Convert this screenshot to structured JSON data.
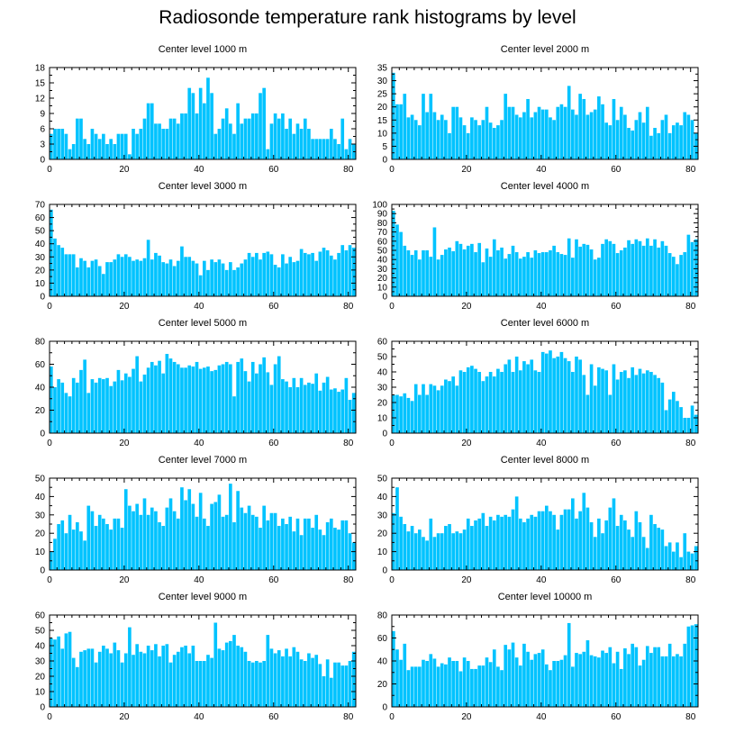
{
  "title": "Radiosonde temperature rank histograms by level",
  "colors": {
    "bar": "#00c3ff",
    "axis": "#000000",
    "background": "#ffffff"
  },
  "chart_data": [
    {
      "type": "bar",
      "title": "Center level 1000 m",
      "xlabel": "",
      "ylabel": "",
      "xlim": [
        0,
        82
      ],
      "ylim": [
        0,
        18
      ],
      "xticks": [
        0,
        20,
        40,
        60,
        80
      ],
      "yticks": [
        0,
        3,
        6,
        9,
        12,
        15,
        18
      ],
      "values": [
        5,
        6,
        6,
        6,
        5,
        2,
        3,
        8,
        8,
        4,
        3,
        6,
        5,
        4,
        5,
        3,
        4,
        3,
        5,
        5,
        5,
        1,
        6,
        5,
        6,
        8,
        11,
        11,
        7,
        7,
        6,
        6,
        8,
        8,
        7,
        9,
        9,
        14,
        13,
        9,
        14,
        11,
        16,
        13,
        5,
        6,
        8,
        10,
        7,
        5,
        11,
        7,
        8,
        8,
        9,
        9,
        13,
        14,
        2,
        7,
        9,
        8,
        9,
        6,
        8,
        5,
        7,
        6,
        8,
        6,
        4,
        4,
        4,
        4,
        4,
        6,
        4,
        3,
        8,
        2,
        4,
        3
      ]
    },
    {
      "type": "bar",
      "title": "Center level 2000 m",
      "xlabel": "",
      "ylabel": "",
      "xlim": [
        0,
        82
      ],
      "ylim": [
        0,
        35
      ],
      "xticks": [
        0,
        20,
        40,
        60,
        80
      ],
      "yticks": [
        0,
        5,
        10,
        15,
        20,
        25,
        30,
        35
      ],
      "values": [
        33,
        21,
        21,
        25,
        16,
        17,
        15,
        13,
        25,
        18,
        25,
        18,
        15,
        17,
        15,
        10,
        20,
        20,
        16,
        13,
        10,
        16,
        15,
        13,
        15,
        20,
        14,
        12,
        13,
        15,
        25,
        20,
        20,
        17,
        16,
        18,
        23,
        16,
        18,
        20,
        19,
        19,
        16,
        15,
        20,
        21,
        20,
        28,
        19,
        17,
        25,
        23,
        17,
        18,
        19,
        24,
        21,
        14,
        13,
        23,
        15,
        20,
        17,
        12,
        11,
        15,
        18,
        14,
        20,
        9,
        12,
        10,
        15,
        17,
        10,
        13,
        14,
        13,
        18,
        17,
        15,
        10
      ]
    },
    {
      "type": "bar",
      "title": "Center level 3000 m",
      "xlabel": "",
      "ylabel": "",
      "xlim": [
        0,
        82
      ],
      "ylim": [
        0,
        70
      ],
      "xticks": [
        0,
        20,
        40,
        60,
        80
      ],
      "yticks": [
        0,
        10,
        20,
        30,
        40,
        50,
        60,
        70
      ],
      "values": [
        66,
        44,
        39,
        37,
        32,
        32,
        32,
        22,
        29,
        27,
        22,
        27,
        28,
        23,
        17,
        26,
        26,
        28,
        32,
        30,
        32,
        30,
        27,
        28,
        27,
        29,
        43,
        28,
        33,
        31,
        26,
        25,
        28,
        23,
        27,
        38,
        30,
        30,
        27,
        25,
        16,
        27,
        20,
        28,
        26,
        28,
        25,
        20,
        26,
        20,
        22,
        25,
        28,
        33,
        30,
        33,
        28,
        33,
        34,
        32,
        24,
        22,
        32,
        25,
        30,
        26,
        27,
        36,
        33,
        32,
        33,
        27,
        34,
        37,
        35,
        31,
        28,
        33,
        39,
        35,
        39,
        37
      ]
    },
    {
      "type": "bar",
      "title": "Center level 4000 m",
      "xlabel": "",
      "ylabel": "",
      "xlim": [
        0,
        82
      ],
      "ylim": [
        0,
        100
      ],
      "xticks": [
        0,
        20,
        40,
        60,
        80
      ],
      "yticks": [
        0,
        10,
        20,
        30,
        40,
        50,
        60,
        70,
        80,
        90,
        100
      ],
      "values": [
        93,
        78,
        70,
        55,
        50,
        45,
        50,
        40,
        50,
        50,
        43,
        75,
        40,
        45,
        51,
        53,
        49,
        60,
        57,
        51,
        55,
        57,
        48,
        58,
        37,
        52,
        43,
        62,
        50,
        53,
        41,
        46,
        55,
        48,
        41,
        43,
        48,
        42,
        50,
        47,
        48,
        48,
        50,
        55,
        48,
        46,
        45,
        63,
        42,
        62,
        54,
        57,
        56,
        51,
        40,
        42,
        57,
        62,
        60,
        57,
        47,
        50,
        53,
        61,
        57,
        62,
        60,
        55,
        63,
        55,
        62,
        53,
        60,
        55,
        47,
        43,
        35,
        45,
        48,
        67,
        59,
        62
      ]
    },
    {
      "type": "bar",
      "title": "Center level 5000 m",
      "xlabel": "",
      "ylabel": "",
      "xlim": [
        0,
        82
      ],
      "ylim": [
        0,
        80
      ],
      "xticks": [
        0,
        20,
        40,
        60,
        80
      ],
      "yticks": [
        0,
        20,
        40,
        60,
        80
      ],
      "values": [
        58,
        40,
        47,
        44,
        35,
        32,
        48,
        44,
        55,
        64,
        35,
        47,
        44,
        48,
        47,
        48,
        41,
        45,
        55,
        46,
        52,
        49,
        56,
        67,
        45,
        51,
        57,
        62,
        59,
        63,
        52,
        69,
        65,
        62,
        60,
        57,
        57,
        59,
        58,
        62,
        56,
        57,
        58,
        54,
        55,
        59,
        60,
        62,
        60,
        32,
        62,
        65,
        54,
        45,
        62,
        52,
        60,
        66,
        53,
        42,
        60,
        67,
        47,
        45,
        40,
        48,
        40,
        48,
        42,
        44,
        43,
        52,
        37,
        44,
        49,
        38,
        39,
        36,
        38,
        48,
        29,
        35
      ]
    },
    {
      "type": "bar",
      "title": "Center level 6000 m",
      "xlabel": "",
      "ylabel": "",
      "xlim": [
        0,
        82
      ],
      "ylim": [
        0,
        60
      ],
      "xticks": [
        0,
        20,
        40,
        60,
        80
      ],
      "yticks": [
        0,
        10,
        20,
        30,
        40,
        50,
        60
      ],
      "values": [
        25,
        25,
        24,
        26,
        23,
        21,
        32,
        25,
        32,
        25,
        32,
        31,
        28,
        31,
        35,
        34,
        37,
        31,
        41,
        40,
        43,
        44,
        42,
        40,
        34,
        37,
        40,
        37,
        42,
        40,
        45,
        48,
        40,
        50,
        41,
        47,
        45,
        48,
        41,
        40,
        53,
        52,
        54,
        49,
        50,
        53,
        49,
        47,
        40,
        50,
        48,
        38,
        25,
        45,
        31,
        43,
        42,
        41,
        25,
        45,
        35,
        40,
        41,
        36,
        43,
        38,
        42,
        39,
        41,
        40,
        38,
        36,
        33,
        15,
        22,
        27,
        21,
        17,
        10,
        10,
        18,
        12
      ]
    },
    {
      "type": "bar",
      "title": "Center level 7000 m",
      "xlabel": "",
      "ylabel": "",
      "xlim": [
        0,
        82
      ],
      "ylim": [
        0,
        50
      ],
      "xticks": [
        0,
        20,
        40,
        60,
        80
      ],
      "yticks": [
        0,
        10,
        20,
        30,
        40,
        50
      ],
      "values": [
        10,
        17,
        25,
        27,
        20,
        30,
        22,
        26,
        21,
        16,
        35,
        32,
        24,
        30,
        28,
        25,
        22,
        28,
        28,
        23,
        44,
        35,
        32,
        36,
        30,
        39,
        30,
        34,
        32,
        26,
        24,
        34,
        39,
        32,
        28,
        45,
        38,
        44,
        36,
        29,
        42,
        28,
        24,
        36,
        37,
        41,
        29,
        30,
        47,
        26,
        43,
        34,
        31,
        35,
        30,
        29,
        23,
        35,
        27,
        31,
        31,
        24,
        28,
        25,
        29,
        21,
        28,
        19,
        28,
        28,
        23,
        30,
        22,
        19,
        26,
        28,
        23,
        22,
        27,
        27,
        20,
        15
      ]
    },
    {
      "type": "bar",
      "title": "Center level 8000 m",
      "xlabel": "",
      "ylabel": "",
      "xlim": [
        0,
        82
      ],
      "ylim": [
        0,
        50
      ],
      "xticks": [
        0,
        20,
        40,
        60,
        80
      ],
      "yticks": [
        0,
        10,
        20,
        30,
        40,
        50
      ],
      "values": [
        31,
        45,
        29,
        25,
        21,
        24,
        20,
        22,
        18,
        16,
        28,
        18,
        20,
        20,
        24,
        25,
        20,
        21,
        20,
        22,
        28,
        24,
        27,
        28,
        31,
        24,
        29,
        27,
        30,
        29,
        30,
        29,
        33,
        40,
        28,
        26,
        28,
        30,
        29,
        32,
        32,
        35,
        32,
        30,
        22,
        30,
        33,
        33,
        39,
        28,
        32,
        42,
        34,
        26,
        18,
        28,
        20,
        27,
        34,
        39,
        24,
        30,
        27,
        22,
        18,
        32,
        26,
        18,
        12,
        30,
        25,
        23,
        22,
        13,
        15,
        10,
        15,
        7,
        20,
        10,
        9,
        13
      ]
    },
    {
      "type": "bar",
      "title": "Center level 9000 m",
      "xlabel": "",
      "ylabel": "",
      "xlim": [
        0,
        82
      ],
      "ylim": [
        0,
        60
      ],
      "xticks": [
        0,
        20,
        40,
        60,
        80
      ],
      "yticks": [
        0,
        10,
        20,
        30,
        40,
        50,
        60
      ],
      "values": [
        45,
        44,
        46,
        38,
        48,
        49,
        32,
        26,
        36,
        37,
        38,
        38,
        29,
        36,
        40,
        38,
        35,
        42,
        37,
        29,
        35,
        52,
        34,
        41,
        36,
        35,
        40,
        37,
        41,
        33,
        40,
        41,
        29,
        34,
        36,
        39,
        40,
        35,
        40,
        30,
        30,
        30,
        34,
        32,
        55,
        38,
        37,
        42,
        43,
        47,
        40,
        39,
        36,
        30,
        29,
        30,
        29,
        30,
        47,
        38,
        35,
        37,
        33,
        38,
        33,
        39,
        36,
        31,
        30,
        35,
        32,
        34,
        28,
        20,
        31,
        19,
        29,
        29,
        27,
        27,
        30,
        36
      ]
    },
    {
      "type": "bar",
      "title": "Center level 10000 m",
      "xlabel": "",
      "ylabel": "",
      "xlim": [
        0,
        82
      ],
      "ylim": [
        0,
        80
      ],
      "xticks": [
        0,
        20,
        40,
        60,
        80
      ],
      "yticks": [
        0,
        20,
        40,
        60,
        80
      ],
      "values": [
        66,
        50,
        41,
        55,
        32,
        35,
        35,
        35,
        41,
        40,
        46,
        42,
        35,
        38,
        37,
        43,
        40,
        40,
        31,
        43,
        40,
        33,
        33,
        36,
        36,
        43,
        39,
        50,
        35,
        32,
        54,
        50,
        56,
        43,
        36,
        55,
        48,
        41,
        46,
        47,
        50,
        37,
        32,
        40,
        40,
        41,
        45,
        73,
        35,
        47,
        46,
        48,
        58,
        45,
        44,
        43,
        49,
        47,
        52,
        38,
        48,
        33,
        51,
        46,
        55,
        52,
        36,
        41,
        53,
        47,
        52,
        52,
        44,
        44,
        55,
        44,
        46,
        44,
        55,
        70,
        71,
        72
      ]
    }
  ]
}
